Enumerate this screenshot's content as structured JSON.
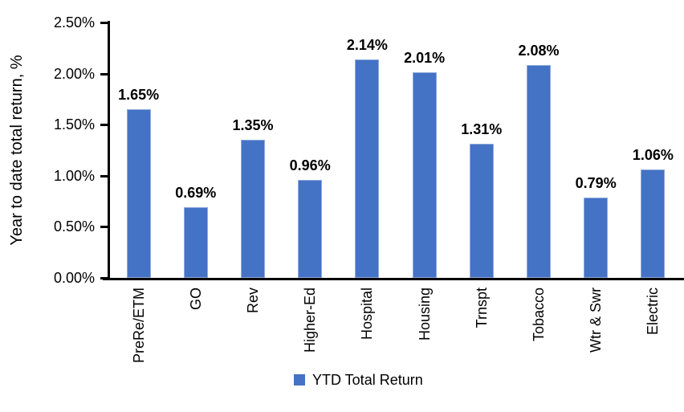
{
  "chart_data": {
    "type": "bar",
    "title": "",
    "xlabel": "",
    "ylabel": "Year to date total return, %",
    "categories": [
      "PreRe/ETM",
      "GO",
      "Rev",
      "Higher-Ed",
      "Hospital",
      "Housing",
      "Trnspt",
      "Tobacco",
      "Wtr & Swr",
      "Electric"
    ],
    "values": [
      1.65,
      0.69,
      1.35,
      0.96,
      2.14,
      2.01,
      1.31,
      2.08,
      0.79,
      1.06
    ],
    "value_labels": [
      "1.65%",
      "0.69%",
      "1.35%",
      "0.96%",
      "2.14%",
      "2.01%",
      "1.31%",
      "2.08%",
      "0.79%",
      "1.06%"
    ],
    "ylim": [
      0,
      2.5
    ],
    "ytick_values": [
      0.0,
      0.5,
      1.0,
      1.5,
      2.0,
      2.5
    ],
    "ytick_labels": [
      "0.00%",
      "0.50%",
      "1.00%",
      "1.50%",
      "2.00%",
      "2.50%"
    ],
    "grid": false,
    "legend_position": "bottom",
    "legend": [
      {
        "label": "YTD Total Return",
        "color": "#4472C4"
      }
    ],
    "bar_color": "#4472C4",
    "bar_border_color": "#8FAADC",
    "axis_color": "#000000",
    "text_color": "#000000"
  }
}
